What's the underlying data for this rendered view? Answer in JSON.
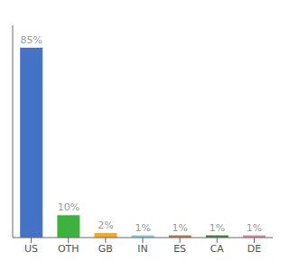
{
  "chart_data": {
    "type": "bar",
    "categories": [
      "US",
      "OTH",
      "GB",
      "IN",
      "ES",
      "CA",
      "DE"
    ],
    "values": [
      85,
      10,
      2,
      1,
      1,
      1,
      1
    ],
    "value_labels": [
      "85%",
      "10%",
      "2%",
      "1%",
      "1%",
      "1%",
      "1%"
    ],
    "colors": [
      "#4472c4",
      "#3db33d",
      "#f5a623",
      "#7ecee8",
      "#c47040",
      "#3d7d3d",
      "#e87ea1"
    ],
    "ylim": [
      0,
      95
    ],
    "data_labels": true,
    "tick_labels": "x",
    "grid": false
  }
}
